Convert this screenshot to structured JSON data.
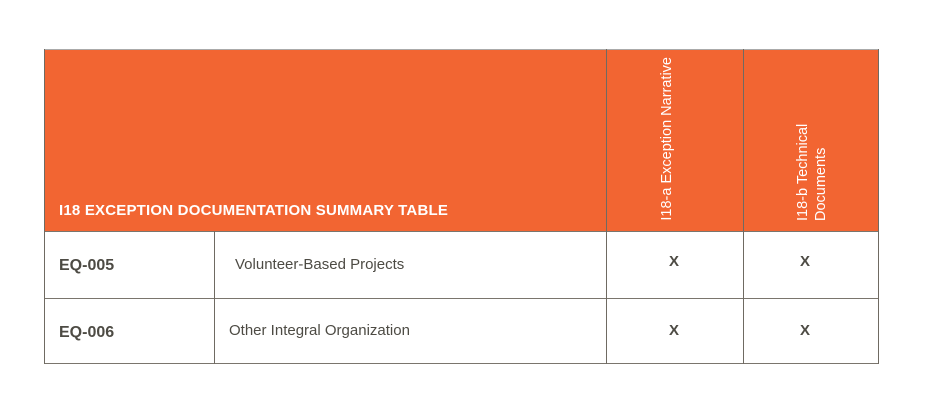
{
  "table": {
    "title": "I18 EXCEPTION DOCUMENTATION SUMMARY TABLE",
    "columns": [
      "I18-a Exception Narrative",
      "I18-b Technical Documents"
    ],
    "rows": [
      {
        "code": "EQ-005",
        "name": "Volunteer-Based Projects",
        "a": "X",
        "b": "X"
      },
      {
        "code": "EQ-006",
        "name": "Other Integral Organization",
        "a": "X",
        "b": "X"
      }
    ]
  },
  "colors": {
    "header": "#f26532",
    "text": "#4d4b44"
  }
}
